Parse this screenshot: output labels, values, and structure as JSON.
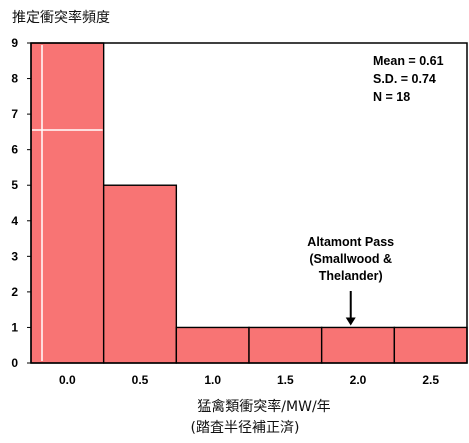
{
  "chart_data": {
    "type": "bar",
    "title": "",
    "ylabel": "推定衝突率頻度",
    "xlabel": "猛禽類衝突率/MW/年",
    "xlabel_sub": "(踏査半径補正済)",
    "bin_width": 0.5,
    "bin_centers": [
      0.0,
      0.5,
      1.0,
      1.5,
      2.0,
      2.5
    ],
    "values": [
      9,
      5,
      1,
      1,
      1,
      1
    ],
    "xlim": [
      -0.25,
      2.75
    ],
    "ylim": [
      0,
      9
    ],
    "xticks": [
      "0.0",
      "0.5",
      "1.0",
      "1.5",
      "2.0",
      "2.5"
    ],
    "yticks": [
      "0",
      "1",
      "2",
      "3",
      "4",
      "5",
      "6",
      "7",
      "8",
      "9"
    ],
    "grid": false,
    "bar_color": "#f87474",
    "stats": {
      "mean": "Mean = 0.61",
      "sd": "S.D. = 0.74",
      "n": "N = 18"
    },
    "annotation": {
      "lines": [
        "Altamont Pass",
        "(Smallwood &",
        "Thelander)"
      ],
      "x": 1.95,
      "y": 1
    }
  }
}
